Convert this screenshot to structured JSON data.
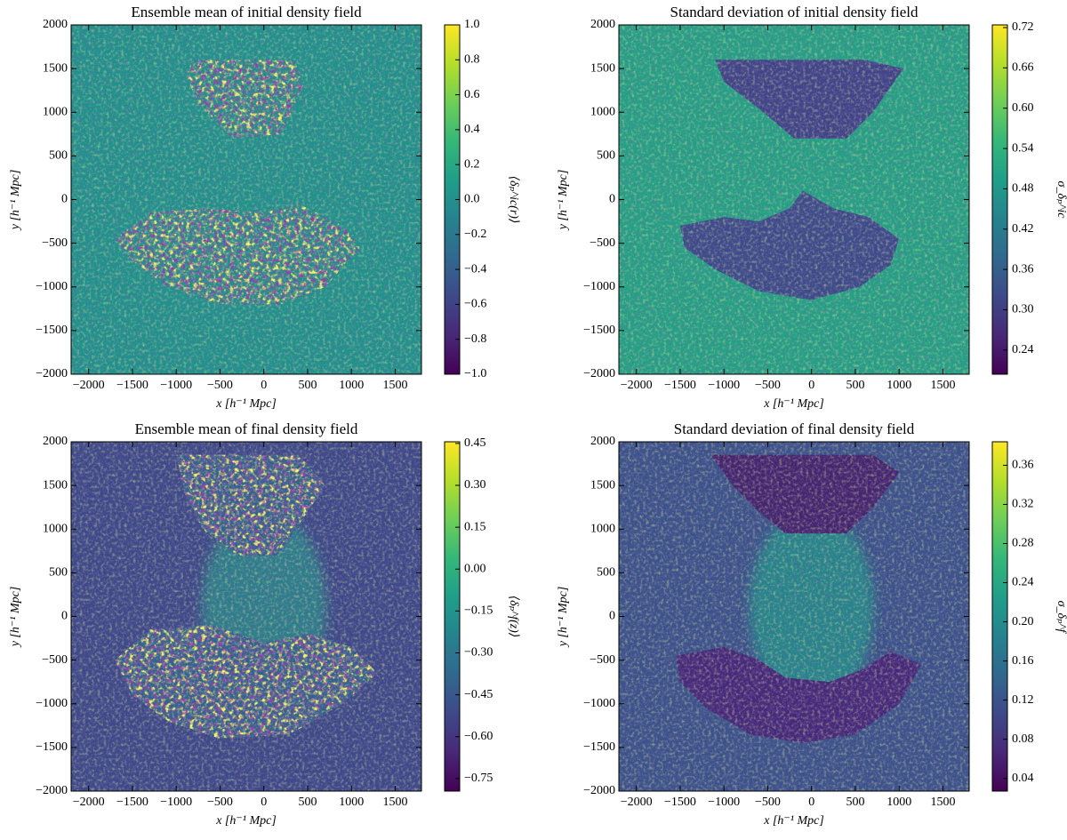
{
  "chart_data": [
    {
      "type": "heatmap",
      "title": "Ensemble mean of initial density field",
      "xlabel": "x [h⁻¹  Mpc]",
      "ylabel": "y [h⁻¹  Mpc]",
      "xlim": [
        -2200,
        1800
      ],
      "ylim": [
        -2000,
        2000
      ],
      "xticks": [
        {
          "value": -2000,
          "label": "−2000"
        },
        {
          "value": -1500,
          "label": "−1500"
        },
        {
          "value": -1000,
          "label": "−1000"
        },
        {
          "value": -500,
          "label": "−500"
        },
        0,
        500,
        1000,
        1500
      ],
      "yticks": [
        {
          "value": -2000,
          "label": "−2000"
        },
        {
          "value": -1500,
          "label": "−1500"
        },
        {
          "value": -1000,
          "label": "−1000"
        },
        {
          "value": -500,
          "label": "−500"
        },
        0,
        500,
        1000,
        1500,
        2000
      ],
      "colormap": "viridis",
      "colorbar": {
        "label": "⟨δₚ^ic(r)⟩",
        "lim": [
          -1,
          1
        ],
        "ticks": [
          {
            "value": -1,
            "label": "−1.0"
          },
          {
            "value": -0.8,
            "label": "−0.8"
          },
          {
            "value": -0.6,
            "label": "−0.6"
          },
          {
            "value": -0.4,
            "label": "−0.4"
          },
          {
            "value": -0.2,
            "label": "−0.2"
          },
          {
            "value": 0,
            "label": "0.0"
          },
          0.2,
          0.4,
          0.6,
          0.8,
          {
            "value": 1,
            "label": "1.0"
          }
        ]
      }
    },
    {
      "type": "heatmap",
      "title": "Standard deviation of initial density field",
      "xlabel": "x [h⁻¹  Mpc]",
      "ylabel": "y [h⁻¹  Mpc]",
      "xlim": [
        -2200,
        1800
      ],
      "ylim": [
        -2000,
        2000
      ],
      "xticks": [
        {
          "value": -2000,
          "label": "−2000"
        },
        {
          "value": -1500,
          "label": "−1500"
        },
        {
          "value": -1000,
          "label": "−1000"
        },
        {
          "value": -500,
          "label": "−500"
        },
        0,
        500,
        1000,
        1500
      ],
      "yticks": [
        {
          "value": -2000,
          "label": "−2000"
        },
        {
          "value": -1500,
          "label": "−1500"
        },
        {
          "value": -1000,
          "label": "−1000"
        },
        {
          "value": -500,
          "label": "−500"
        },
        0,
        500,
        1000,
        1500,
        2000
      ],
      "colormap": "viridis",
      "colorbar": {
        "label": "σ_δₚ^ic",
        "lim": [
          0.204,
          0.724
        ],
        "ticks": [
          0.24,
          {
            "value": 0.3,
            "label": "0.30"
          },
          0.36,
          0.42,
          0.48,
          0.54,
          {
            "value": 0.6,
            "label": "0.60"
          },
          0.66,
          0.72
        ]
      }
    },
    {
      "type": "heatmap",
      "title": "Ensemble mean of final density field",
      "xlabel": "x [h⁻¹  Mpc]",
      "ylabel": "y [h⁻¹  Mpc]",
      "xlim": [
        -2200,
        1800
      ],
      "ylim": [
        -2000,
        2000
      ],
      "xticks": [
        {
          "value": -2000,
          "label": "−2000"
        },
        {
          "value": -1500,
          "label": "−1500"
        },
        {
          "value": -1000,
          "label": "−1000"
        },
        {
          "value": -500,
          "label": "−500"
        },
        0,
        500,
        1000,
        1500
      ],
      "yticks": [
        {
          "value": -2000,
          "label": "−2000"
        },
        {
          "value": -1500,
          "label": "−1500"
        },
        {
          "value": -1000,
          "label": "−1000"
        },
        {
          "value": -500,
          "label": "−500"
        },
        0,
        500,
        1000,
        1500,
        2000
      ],
      "colormap": "viridis",
      "colorbar": {
        "label": "⟨δₚ^f(z)⟩",
        "lim": [
          -0.795,
          0.456
        ],
        "ticks": [
          {
            "value": -0.75,
            "label": "−0.75"
          },
          {
            "value": -0.6,
            "label": "−0.60"
          },
          {
            "value": -0.45,
            "label": "−0.45"
          },
          {
            "value": -0.3,
            "label": "−0.30"
          },
          {
            "value": -0.15,
            "label": "−0.15"
          },
          {
            "value": 0,
            "label": "0.00"
          },
          0.15,
          {
            "value": 0.3,
            "label": "0.30"
          },
          0.45
        ]
      }
    },
    {
      "type": "heatmap",
      "title": "Standard deviation of final density field",
      "xlabel": "x [h⁻¹  Mpc]",
      "ylabel": "y [h⁻¹  Mpc]",
      "xlim": [
        -2200,
        1800
      ],
      "ylim": [
        -2000,
        2000
      ],
      "xticks": [
        {
          "value": -2000,
          "label": "−2000"
        },
        {
          "value": -1500,
          "label": "−1500"
        },
        {
          "value": -1000,
          "label": "−1000"
        },
        {
          "value": -500,
          "label": "−500"
        },
        0,
        500,
        1000,
        1500
      ],
      "yticks": [
        {
          "value": -2000,
          "label": "−2000"
        },
        {
          "value": -1500,
          "label": "−1500"
        },
        {
          "value": -1000,
          "label": "−1000"
        },
        {
          "value": -500,
          "label": "−500"
        },
        0,
        500,
        1000,
        1500,
        2000
      ],
      "colormap": "viridis",
      "colorbar": {
        "label": "σ_δₚ^f",
        "lim": [
          0.027,
          0.384
        ],
        "ticks": [
          0.04,
          0.08,
          0.12,
          0.16,
          {
            "value": 0.2,
            "label": "0.20"
          },
          0.24,
          0.28,
          0.32,
          0.36
        ]
      }
    }
  ]
}
